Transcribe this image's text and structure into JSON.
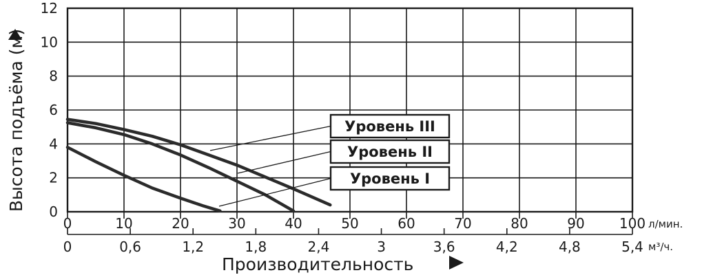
{
  "chart_data": {
    "type": "line",
    "ylabel": "Высота подъёма (м)",
    "xlabel": "Производительность",
    "x_primary": {
      "unit": "л/мин.",
      "range": [
        0,
        100
      ],
      "ticks": [
        0,
        10,
        20,
        30,
        40,
        50,
        60,
        70,
        80,
        90,
        100
      ]
    },
    "x_secondary": {
      "unit": "м³/ч.",
      "ticks": [
        "0",
        "0,6",
        "1,2",
        "1,8",
        "2,4",
        "3",
        "3,6",
        "4,2",
        "4,8",
        "5,4"
      ]
    },
    "y": {
      "range": [
        0,
        12
      ],
      "ticks": [
        0,
        2,
        4,
        6,
        8,
        10,
        12
      ]
    },
    "grid": true,
    "series": [
      {
        "name": "Уровень III",
        "points": [
          [
            0,
            5.45
          ],
          [
            5,
            5.2
          ],
          [
            10,
            4.85
          ],
          [
            15,
            4.45
          ],
          [
            20,
            3.95
          ],
          [
            25,
            3.35
          ],
          [
            30,
            2.75
          ],
          [
            35,
            2.05
          ],
          [
            40,
            1.35
          ],
          [
            46.5,
            0.4
          ]
        ]
      },
      {
        "name": "Уровень II",
        "points": [
          [
            0,
            5.25
          ],
          [
            5,
            4.95
          ],
          [
            10,
            4.55
          ],
          [
            15,
            4.0
          ],
          [
            20,
            3.35
          ],
          [
            25,
            2.6
          ],
          [
            30,
            1.8
          ],
          [
            35,
            1.0
          ],
          [
            40,
            0.05
          ]
        ]
      },
      {
        "name": "Уровень I",
        "points": [
          [
            0,
            3.8
          ],
          [
            5,
            2.95
          ],
          [
            10,
            2.15
          ],
          [
            15,
            1.4
          ],
          [
            20,
            0.8
          ],
          [
            24,
            0.35
          ],
          [
            27,
            0.05
          ]
        ]
      }
    ],
    "line_color": "#2b2b2b"
  }
}
